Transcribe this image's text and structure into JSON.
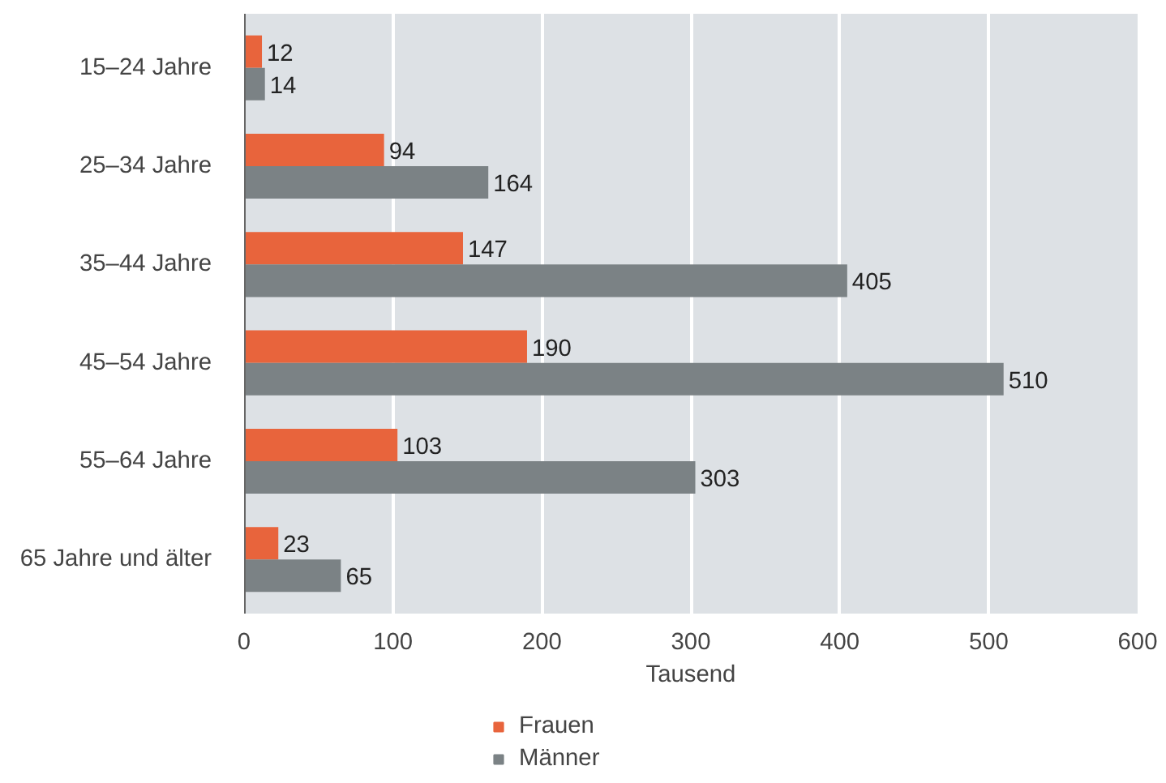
{
  "chart_data": {
    "type": "bar",
    "orientation": "horizontal",
    "categories": [
      "15–24 Jahre",
      "25–34 Jahre",
      "35–44 Jahre",
      "45–54 Jahre",
      "55–64 Jahre",
      "65 Jahre und älter"
    ],
    "series": [
      {
        "name": "Frauen",
        "color": "#e8643c",
        "values": [
          12,
          94,
          147,
          190,
          103,
          23
        ]
      },
      {
        "name": "Männer",
        "color": "#7b8285",
        "values": [
          14,
          164,
          405,
          510,
          303,
          65
        ]
      }
    ],
    "xlabel": "Tausend",
    "xlim": [
      0,
      600
    ],
    "xticks": [
      0,
      100,
      200,
      300,
      400,
      500,
      600
    ],
    "grid": "x",
    "legend": "bottom left",
    "data_labels": true
  }
}
